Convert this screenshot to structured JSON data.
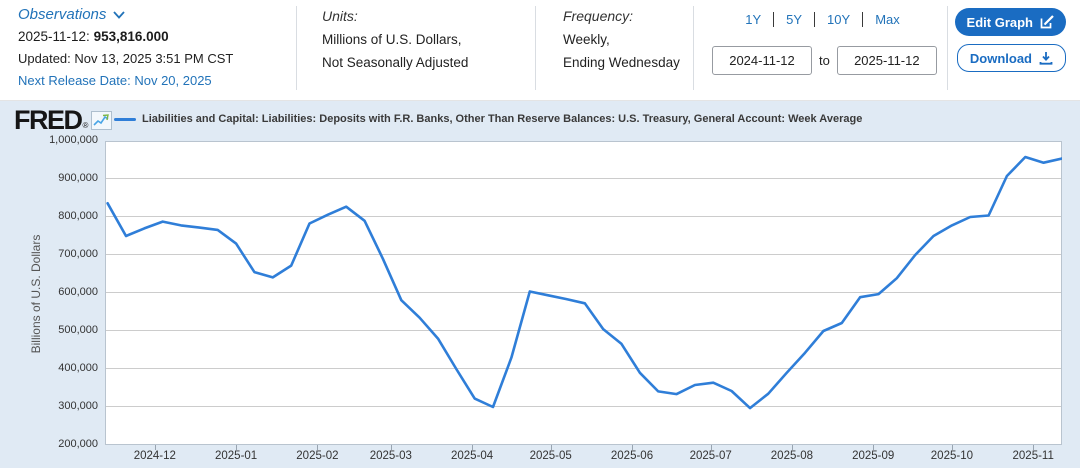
{
  "header": {
    "observations_label": "Observations",
    "latest_date_label": "2025-11-12:",
    "latest_value": "953,816.000",
    "updated": "Updated: Nov 13, 2025 3:51 PM CST",
    "next_release": "Next Release Date: Nov 20, 2025",
    "units": {
      "label": "Units:",
      "line1": "Millions of U.S. Dollars,",
      "line2": "Not Seasonally Adjusted"
    },
    "frequency": {
      "label": "Frequency:",
      "line1": "Weekly,",
      "line2": "Ending Wednesday"
    },
    "ranges": [
      "1Y",
      "5Y",
      "10Y",
      "Max"
    ],
    "date_from": "2024-11-12",
    "to_label": "to",
    "date_to": "2025-11-12",
    "edit_graph_label": "Edit Graph",
    "download_label": "Download"
  },
  "chart": {
    "logo": "FRED",
    "logo_reg": "®",
    "y_axis_title": "Billions of U.S. Dollars"
  },
  "colors": {
    "accent_blue": "#1a6cc2",
    "link_blue": "#2273b9",
    "chart_background": "#e0eaf4",
    "plot_background": "#ffffff",
    "gridline": "#cccccc",
    "plot_border": "#b9c4cf",
    "series_line": "#2f7ed8"
  },
  "chart_data": {
    "type": "line",
    "title": "Liabilities and Capital: Liabilities: Deposits with F.R. Banks, Other Than Reserve Balances: U.S. Treasury, General Account: Week Average",
    "xlabel": "",
    "ylabel": "Billions of U.S. Dollars",
    "ylim": [
      200000,
      1000000
    ],
    "grid": true,
    "legend_position": "top",
    "x_range": [
      "2024-11-12",
      "2025-11-12"
    ],
    "y_ticks": [
      "1,000,000",
      "900,000",
      "800,000",
      "700,000",
      "600,000",
      "500,000",
      "400,000",
      "300,000",
      "200,000"
    ],
    "x_tick_labels": [
      "2024-12",
      "2025-01",
      "2025-02",
      "2025-03",
      "2025-04",
      "2025-05",
      "2025-06",
      "2025-07",
      "2025-08",
      "2025-09",
      "2025-10",
      "2025-11"
    ],
    "x": [
      "2024-11-13",
      "2024-11-20",
      "2024-11-27",
      "2024-12-04",
      "2024-12-11",
      "2024-12-18",
      "2024-12-25",
      "2025-01-01",
      "2025-01-08",
      "2025-01-15",
      "2025-01-22",
      "2025-01-29",
      "2025-02-05",
      "2025-02-12",
      "2025-02-19",
      "2025-02-26",
      "2025-03-05",
      "2025-03-12",
      "2025-03-19",
      "2025-03-26",
      "2025-04-02",
      "2025-04-09",
      "2025-04-16",
      "2025-04-23",
      "2025-04-30",
      "2025-05-07",
      "2025-05-14",
      "2025-05-21",
      "2025-05-28",
      "2025-06-04",
      "2025-06-11",
      "2025-06-18",
      "2025-06-25",
      "2025-07-02",
      "2025-07-09",
      "2025-07-16",
      "2025-07-23",
      "2025-07-30",
      "2025-08-06",
      "2025-08-13",
      "2025-08-20",
      "2025-08-27",
      "2025-09-03",
      "2025-09-10",
      "2025-09-17",
      "2025-09-24",
      "2025-10-01",
      "2025-10-08",
      "2025-10-15",
      "2025-10-22",
      "2025-10-29",
      "2025-11-05",
      "2025-11-12"
    ],
    "series": [
      {
        "name": "Liabilities and Capital: Liabilities: Deposits with F.R. Banks, Other Than Reserve Balances: U.S. Treasury, General Account: Week Average",
        "color": "#2f7ed8",
        "values": [
          836000,
          750000,
          770000,
          788000,
          778000,
          772000,
          766000,
          730000,
          655000,
          641000,
          672000,
          783000,
          806000,
          827000,
          790000,
          690000,
          581000,
          535000,
          480000,
          400000,
          322000,
          300000,
          430000,
          604000,
          594000,
          584000,
          573000,
          505000,
          466000,
          390000,
          341000,
          334000,
          358000,
          364000,
          342000,
          297000,
          335000,
          390000,
          443000,
          500000,
          521000,
          589000,
          597000,
          639000,
          700000,
          750000,
          778000,
          800000,
          804000,
          908000,
          958000,
          943000,
          953816
        ]
      }
    ]
  }
}
